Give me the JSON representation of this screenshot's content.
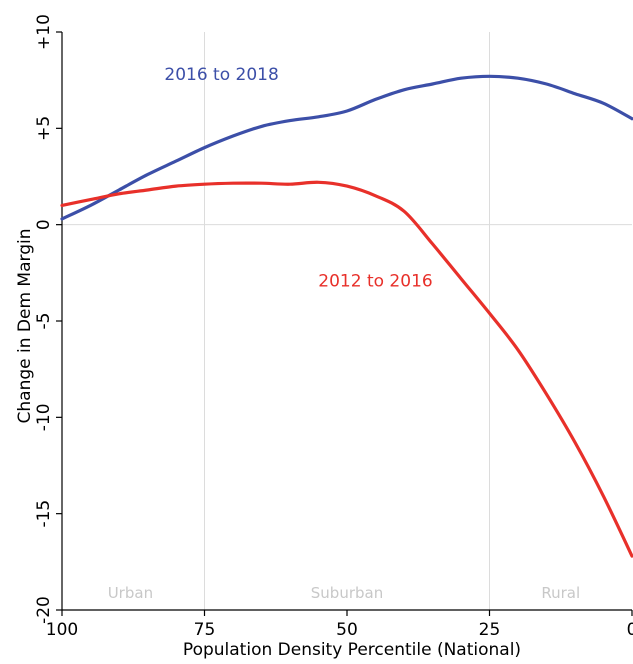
{
  "chart_data": {
    "type": "line",
    "title": "",
    "xlabel": "Population Density Percentile (National)",
    "ylabel": "Change in Dem Margin",
    "xlim": [
      100,
      0
    ],
    "ylim": [
      -20,
      10
    ],
    "x_ticks": [
      100,
      75,
      50,
      25,
      0
    ],
    "y_ticks": [
      10,
      5,
      0,
      -5,
      -10,
      -15,
      -20
    ],
    "y_tick_labels": [
      "+10",
      "+5",
      "0",
      "-5",
      "-10",
      "-15",
      "-20"
    ],
    "vertical_gridlines_at": [
      75,
      25
    ],
    "horizontal_gridlines_at": [
      0
    ],
    "regions": [
      {
        "label": "Urban",
        "center_x": 88
      },
      {
        "label": "Suburban",
        "center_x": 50
      },
      {
        "label": "Rural",
        "center_x": 12.5
      }
    ],
    "series": [
      {
        "name": "2016 to 2018",
        "color": "#3c4fa8",
        "label_at": [
          72,
          7.5
        ],
        "x": [
          100,
          95,
          90,
          85,
          80,
          75,
          70,
          65,
          60,
          55,
          50,
          45,
          40,
          35,
          30,
          25,
          20,
          15,
          10,
          5,
          0
        ],
        "y": [
          0.3,
          1.0,
          1.8,
          2.6,
          3.3,
          4.0,
          4.6,
          5.1,
          5.4,
          5.6,
          5.9,
          6.5,
          7.0,
          7.3,
          7.6,
          7.7,
          7.6,
          7.3,
          6.8,
          6.3,
          5.5
        ]
      },
      {
        "name": "2012 to 2016",
        "color": "#e8302a",
        "label_at": [
          45,
          -3.2
        ],
        "x": [
          100,
          95,
          90,
          85,
          80,
          75,
          70,
          65,
          60,
          55,
          50,
          45,
          40,
          35,
          30,
          25,
          20,
          15,
          10,
          5,
          0
        ],
        "y": [
          1.0,
          1.3,
          1.6,
          1.8,
          2.0,
          2.1,
          2.15,
          2.15,
          2.1,
          2.2,
          2.0,
          1.5,
          0.7,
          -1.0,
          -2.8,
          -4.6,
          -6.5,
          -8.8,
          -11.3,
          -14.1,
          -17.2
        ]
      }
    ]
  }
}
